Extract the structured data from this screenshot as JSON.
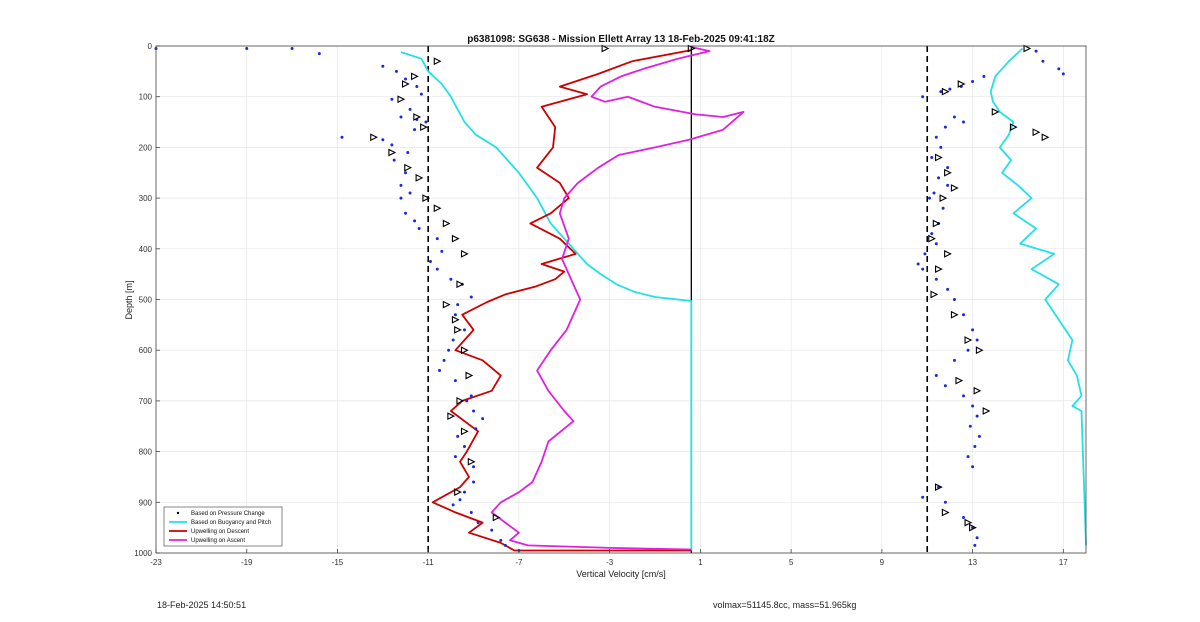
{
  "footer": {
    "timestamp": "18-Feb-2025 14:50:51",
    "volmax_mass": "volmax=51145.8cc, mass=51.965kg"
  },
  "chart_data": {
    "type": "line",
    "title": "p6381098: SG638 - Mission Ellett Array 13 18-Feb-2025 09:41:18Z",
    "xlabel": "Vertical Velocity [cm/s]",
    "ylabel": "Depth [m]",
    "xlim": [
      -23,
      18
    ],
    "ylim": [
      0,
      1000
    ],
    "y_reversed": true,
    "grid": true,
    "xticks": [
      -23,
      -19,
      -15,
      -11,
      -7,
      -3,
      1,
      5,
      9,
      13,
      17
    ],
    "yticks": [
      0,
      100,
      200,
      300,
      400,
      500,
      600,
      700,
      800,
      900,
      1000
    ],
    "legend_position": "bottom-left",
    "legend": [
      {
        "label": "Based on Pressure Change",
        "color": "#000000",
        "style": "dot"
      },
      {
        "label": "Based on Buoyancy and Pitch",
        "color": "#22e0e8",
        "style": "line"
      },
      {
        "label": "Upwelling on Descent",
        "color": "#cc0000",
        "style": "line"
      },
      {
        "label": "Upwelling on Ascent",
        "color": "#e020e0",
        "style": "line"
      }
    ],
    "reference_lines": {
      "dashed_x": [
        -11,
        11
      ],
      "solid_x": [
        0.6
      ]
    },
    "series": [
      {
        "name": "Based on Buoyancy and Pitch",
        "segment": "descent",
        "color": "#22e0e8",
        "x": [
          -12.2,
          -11.3,
          -11.0,
          -10.4,
          -10.0,
          -9.7,
          -9.4,
          -8.9,
          -8.0,
          -7.0,
          -6.2,
          -5.6,
          -5.0,
          -4.4,
          -4.0,
          -3.4,
          -2.7,
          -1.9,
          -1.0,
          0.6,
          0.6,
          0.6,
          0.6,
          0.6,
          0.6
        ],
        "y": [
          12,
          25,
          50,
          75,
          100,
          125,
          150,
          175,
          200,
          250,
          300,
          350,
          380,
          410,
          430,
          450,
          470,
          485,
          495,
          503,
          600,
          700,
          800,
          900,
          995
        ]
      },
      {
        "name": "Based on Buoyancy and Pitch",
        "segment": "ascent",
        "color": "#22e0e8",
        "x": [
          15.2,
          14.6,
          14.0,
          13.8,
          13.9,
          14.2,
          14.8,
          14.6,
          14.2,
          14.7,
          14.3,
          15.0,
          15.6,
          14.8,
          15.8,
          15.1,
          16.6,
          15.6,
          16.8,
          16.2,
          16.8,
          17.4,
          17.2,
          17.6,
          17.8,
          17.4,
          17.8,
          18.0
        ],
        "y": [
          5,
          30,
          60,
          90,
          110,
          130,
          150,
          175,
          200,
          225,
          250,
          275,
          300,
          330,
          360,
          390,
          410,
          440,
          470,
          500,
          540,
          580,
          620,
          650,
          690,
          710,
          720,
          985
        ]
      },
      {
        "name": "Upwelling on Descent",
        "color": "#cc0000",
        "x": [
          0.6,
          -2.0,
          -3.5,
          -5.2,
          -4.0,
          -6.0,
          -5.4,
          -5.5,
          -6.2,
          -5.2,
          -4.8,
          -5.6,
          -6.5,
          -5.2,
          -4.5,
          -6.0,
          -5.0,
          -5.4,
          -6.3,
          -7.6,
          -8.4,
          -9.5,
          -9.0,
          -9.8,
          -8.6,
          -7.8,
          -8.2,
          -9.5,
          -10.0,
          -8.8,
          -9.3,
          -9.6,
          -9.2,
          -9.6,
          -10.8,
          -9.8,
          -8.6,
          -9.2,
          -7.8,
          -7.2,
          0.6
        ],
        "y": [
          8,
          30,
          55,
          80,
          95,
          120,
          160,
          200,
          240,
          270,
          300,
          330,
          350,
          380,
          410,
          430,
          445,
          460,
          475,
          490,
          505,
          530,
          560,
          600,
          620,
          650,
          680,
          700,
          720,
          760,
          800,
          820,
          850,
          870,
          900,
          920,
          940,
          960,
          980,
          995,
          995
        ]
      },
      {
        "name": "Upwelling on Ascent",
        "color": "#e020e0",
        "x": [
          0.6,
          1.4,
          0.0,
          -1.5,
          -2.5,
          -3.4,
          -3.8,
          -3.2,
          -2.2,
          -1.0,
          0.8,
          2.0,
          2.9,
          2.0,
          0.5,
          -1.0,
          -2.6,
          -3.5,
          -4.4,
          -5.0,
          -5.2,
          -4.8,
          -5.1,
          -4.7,
          -4.3,
          -4.9,
          -5.6,
          -6.2,
          -5.7,
          -5.0,
          -4.6,
          -5.7,
          -6.0,
          -6.4,
          -7.0,
          -7.8,
          -8.2,
          -7.6,
          -7.0,
          -7.4,
          -6.6,
          -3.0,
          0.6
        ],
        "y": [
          2,
          10,
          25,
          45,
          60,
          80,
          100,
          110,
          100,
          120,
          135,
          140,
          130,
          165,
          185,
          200,
          215,
          240,
          270,
          300,
          330,
          380,
          420,
          460,
          500,
          560,
          600,
          640,
          680,
          720,
          740,
          780,
          820,
          860,
          880,
          900,
          920,
          940,
          960,
          975,
          985,
          990,
          993
        ]
      }
    ],
    "pressure_change_descent_points": {
      "x": [
        -23.0,
        -19.0,
        -17.0,
        -15.8,
        -13.0,
        -12.4,
        -12.0,
        -11.5,
        -11.3,
        -12.6,
        -11.8,
        -12.2,
        -11.5,
        -11.1,
        -11.6,
        -14.8,
        -13.0,
        -12.6,
        -11.9,
        -12.5,
        -12.0,
        -12.2,
        -11.8,
        -12.2,
        -12.0,
        -11.6,
        -11.4,
        -10.6,
        -10.4,
        -10.9,
        -10.6,
        -10.0,
        -9.5,
        -9.1,
        -9.7,
        -9.8,
        -9.4,
        -9.9,
        -10.1,
        -10.3,
        -10.5,
        -9.8,
        -9.1,
        -9.3,
        -9.0,
        -8.6,
        -8.9,
        -9.7,
        -9.4,
        -9.8,
        -9.0,
        -9.0,
        -9.4,
        -9.6,
        -9.9,
        -9.1,
        -8.8,
        -8.2,
        -7.8,
        -7.6,
        -7.0
      ],
      "y": [
        5,
        5,
        5,
        15,
        40,
        50,
        65,
        80,
        95,
        105,
        125,
        140,
        145,
        150,
        165,
        180,
        185,
        195,
        210,
        225,
        250,
        275,
        290,
        300,
        330,
        345,
        360,
        380,
        405,
        425,
        440,
        460,
        470,
        495,
        510,
        530,
        560,
        580,
        600,
        620,
        640,
        660,
        690,
        700,
        720,
        735,
        755,
        770,
        790,
        810,
        830,
        860,
        880,
        895,
        905,
        920,
        940,
        955,
        975,
        985,
        995
      ]
    },
    "pressure_change_ascent_points": {
      "x": [
        13.5,
        13.0,
        12.5,
        12.0,
        11.6,
        10.8,
        12.2,
        12.6,
        11.8,
        11.4,
        11.6,
        11.2,
        11.9,
        11.5,
        11.9,
        11.3,
        11.1,
        11.7,
        11.5,
        11.2,
        11.4,
        10.9,
        10.6,
        10.8,
        11.4,
        11.9,
        12.2,
        12.6,
        13.0,
        13.2,
        12.8,
        12.2,
        11.4,
        11.8,
        12.6,
        13.0,
        13.2,
        12.9,
        13.3,
        13.1,
        12.8,
        13.0,
        11.5,
        10.8,
        11.8,
        12.6,
        13.0,
        13.2,
        13.1,
        15.8,
        16.1,
        16.8,
        17.0
      ],
      "x_note": "",
      "y": [
        60,
        70,
        80,
        85,
        90,
        100,
        140,
        150,
        160,
        180,
        200,
        220,
        240,
        260,
        275,
        290,
        300,
        320,
        350,
        370,
        390,
        410,
        430,
        440,
        460,
        480,
        500,
        530,
        560,
        580,
        600,
        620,
        650,
        670,
        690,
        710,
        730,
        750,
        770,
        790,
        810,
        830,
        870,
        890,
        900,
        930,
        950,
        970,
        985,
        10,
        30,
        45,
        55
      ]
    },
    "pressure_change_triangles": {
      "x": [
        -10.6,
        -11.6,
        -12.0,
        -12.2,
        -11.5,
        -11.2,
        -13.4,
        -12.6,
        -11.9,
        -11.4,
        -11.1,
        -10.6,
        -10.2,
        -9.8,
        -9.4,
        -9.6,
        -10.2,
        -9.8,
        -9.7,
        -9.4,
        -9.2,
        -9.6,
        -10.0,
        -9.4,
        -9.1,
        -9.7,
        -8.0,
        -3.2,
        0.6,
        15.4,
        12.5,
        11.8,
        11.5,
        11.9,
        12.2,
        11.7,
        11.4,
        11.2,
        11.9,
        11.5,
        11.3,
        12.2,
        12.8,
        13.3,
        12.4,
        13.2,
        13.6,
        11.5,
        11.8,
        12.8,
        13.0,
        14.0,
        14.8,
        15.8,
        16.2
      ],
      "y": [
        30,
        60,
        75,
        105,
        140,
        160,
        180,
        210,
        240,
        260,
        300,
        320,
        350,
        380,
        410,
        470,
        510,
        540,
        560,
        600,
        650,
        700,
        730,
        760,
        820,
        880,
        930,
        5,
        5,
        5,
        75,
        90,
        220,
        250,
        280,
        300,
        350,
        380,
        410,
        440,
        490,
        530,
        580,
        600,
        660,
        680,
        720,
        870,
        920,
        940,
        950,
        130,
        160,
        170,
        180
      ]
    }
  }
}
